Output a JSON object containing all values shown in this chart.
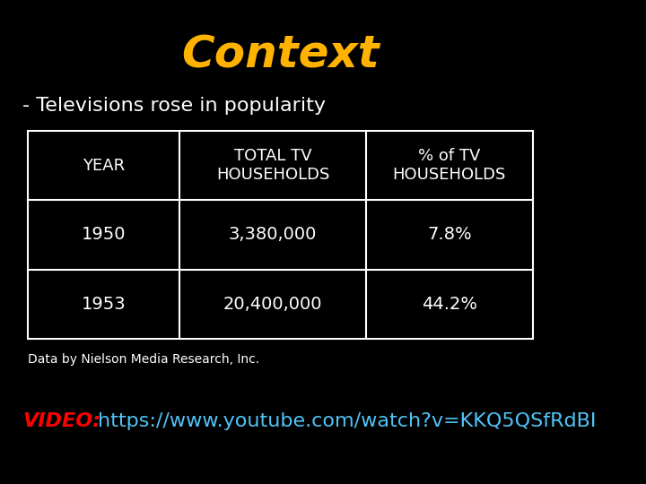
{
  "title": "Context",
  "title_color": "#FFB300",
  "title_fontsize": 36,
  "title_style": "italic",
  "background_color": "#000000",
  "subtitle": "- Televisions rose in popularity",
  "subtitle_color": "#FFFFFF",
  "subtitle_fontsize": 16,
  "table_headers": [
    "YEAR",
    "TOTAL TV\nHOUSEHOLDS",
    "% of TV\nHOUSEHOLDS"
  ],
  "table_rows": [
    [
      "1950",
      "3,380,000",
      "7.8%"
    ],
    [
      "1953",
      "20,400,000",
      "44.2%"
    ]
  ],
  "table_text_color": "#FFFFFF",
  "table_border_color": "#FFFFFF",
  "table_header_fontsize": 13,
  "table_data_fontsize": 14,
  "footnote": "Data by Nielson Media Research, Inc.",
  "footnote_color": "#FFFFFF",
  "footnote_fontsize": 10,
  "video_label": "VIDEO:",
  "video_label_color": "#FF0000",
  "video_label_style": "italic",
  "video_label_fontsize": 16,
  "video_url": "https://www.youtube.com/watch?v=KKQ5QSfRdBI",
  "video_url_color": "#4FC3F7",
  "video_url_fontsize": 16
}
